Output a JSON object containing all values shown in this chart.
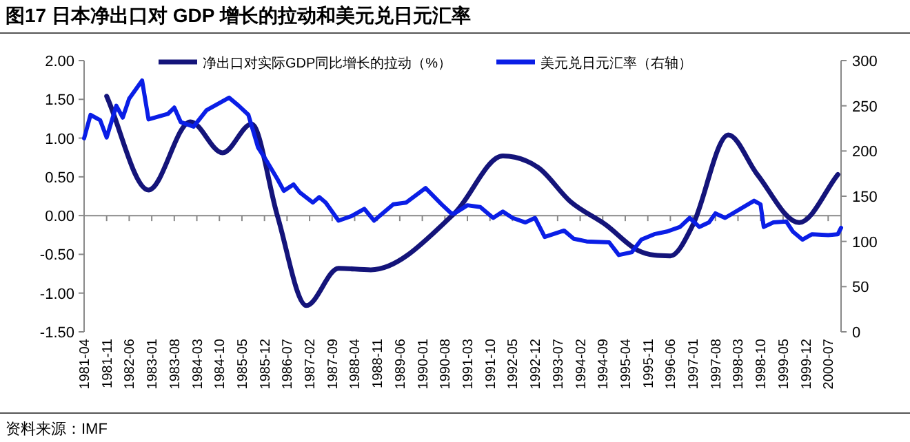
{
  "chart_data": {
    "type": "line",
    "title": "图17 日本净出口对 GDP 增长的拉动和美元兑日元汇率",
    "annotations": [
      "资料来源：IMF"
    ],
    "xlim": [
      "1981-04",
      "2000-11"
    ],
    "xticks": [
      "1981-04",
      "1981-11",
      "1982-06",
      "1983-01",
      "1983-08",
      "1984-03",
      "1984-10",
      "1985-05",
      "1985-12",
      "1986-07",
      "1987-02",
      "1987-09",
      "1988-04",
      "1988-11",
      "1989-06",
      "1990-01",
      "1990-08",
      "1991-03",
      "1991-10",
      "1992-05",
      "1992-12",
      "1993-07",
      "1994-02",
      "1994-09",
      "1995-04",
      "1995-11",
      "1996-06",
      "1997-01",
      "1997-08",
      "1998-03",
      "1998-10",
      "1999-05",
      "1999-12",
      "2000-07"
    ],
    "ylim": [
      -1.5,
      2.0
    ],
    "yticks": [
      {
        "value": -1.5,
        "label": "-1.50"
      },
      {
        "value": -1.0,
        "label": "-1.00"
      },
      {
        "value": -0.5,
        "label": "-0.50"
      },
      {
        "value": 0,
        "label": "0.00"
      },
      {
        "value": 0.5,
        "label": "0.50"
      },
      {
        "value": 1.0,
        "label": "1.00"
      },
      {
        "value": 1.5,
        "label": "1.50"
      },
      {
        "value": 2.0,
        "label": "2.00"
      }
    ],
    "y2lim": [
      0,
      300
    ],
    "y2ticks": [
      0,
      50,
      100,
      150,
      200,
      250,
      300
    ],
    "legend": "top",
    "series": [
      {
        "name": "净出口对实际GDP同比增长的拉动（%）",
        "color": "#14147a",
        "x": [
          "1981-11",
          "1982-12",
          "1984-01",
          "1984-11",
          "1985-08",
          "1986-04",
          "1987-01",
          "1987-11",
          "1988-09",
          "1990-11",
          "1992-02",
          "1993-01",
          "1993-11",
          "1994-10",
          "1995-08",
          "1996-06",
          "1997-01",
          "1997-12",
          "1998-09",
          "1999-10",
          "2000-10"
        ],
        "values": [
          1.54,
          0.33,
          1.21,
          0.81,
          1.18,
          0,
          -1.16,
          -0.68,
          -0.7,
          0.03,
          0.77,
          0.62,
          0.18,
          -0.12,
          -0.45,
          -0.52,
          -0.12,
          1.04,
          0.53,
          -0.09,
          0.53
        ]
      },
      {
        "name": "美元兑日元汇率（右轴）",
        "color": "#0a1ee6",
        "axis": "y2",
        "x": [
          "1981-04",
          "1981-06",
          "1981-09",
          "1981-11",
          "1982-02",
          "1982-04",
          "1982-06",
          "1982-10",
          "1982-12",
          "1983-06",
          "1983-08",
          "1983-10",
          "1984-02",
          "1984-06",
          "1985-01",
          "1985-04",
          "1985-07",
          "1985-10",
          "1986-01",
          "1986-04",
          "1986-06",
          "1986-09",
          "1986-11",
          "1987-03",
          "1987-05",
          "1987-07",
          "1987-11",
          "1988-03",
          "1988-07",
          "1988-10",
          "1989-04",
          "1989-08",
          "1990-02",
          "1990-07",
          "1990-10",
          "1990-11",
          "1991-03",
          "1991-07",
          "1991-11",
          "1992-02",
          "1992-05",
          "1992-09",
          "1992-12",
          "1993-03",
          "1993-09",
          "1993-12",
          "1994-04",
          "1994-11",
          "1995-02",
          "1995-06",
          "1995-09",
          "1996-01",
          "1996-05",
          "1996-09",
          "1996-12",
          "1997-03",
          "1997-06",
          "1997-08",
          "1997-11",
          "1998-08",
          "1998-10",
          "1998-11",
          "1999-02",
          "1999-06",
          "1999-08",
          "1999-11",
          "2000-02",
          "2000-07",
          "2000-10",
          "2000-11"
        ],
        "values": [
          214,
          240,
          234,
          215,
          250,
          237,
          258,
          278,
          235,
          241,
          248,
          232,
          227,
          245,
          259,
          250,
          240,
          204,
          187,
          169,
          156,
          163,
          154,
          143,
          149,
          143,
          123,
          128,
          136,
          123,
          141,
          143,
          159,
          141,
          131,
          131,
          140,
          138,
          126,
          133,
          126,
          121,
          126,
          105,
          112,
          103,
          100,
          99,
          85,
          88,
          102,
          108,
          111,
          116,
          126,
          116,
          121,
          131,
          126,
          145,
          141,
          116,
          121,
          122,
          111,
          102,
          108,
          107,
          108,
          115
        ]
      }
    ]
  }
}
